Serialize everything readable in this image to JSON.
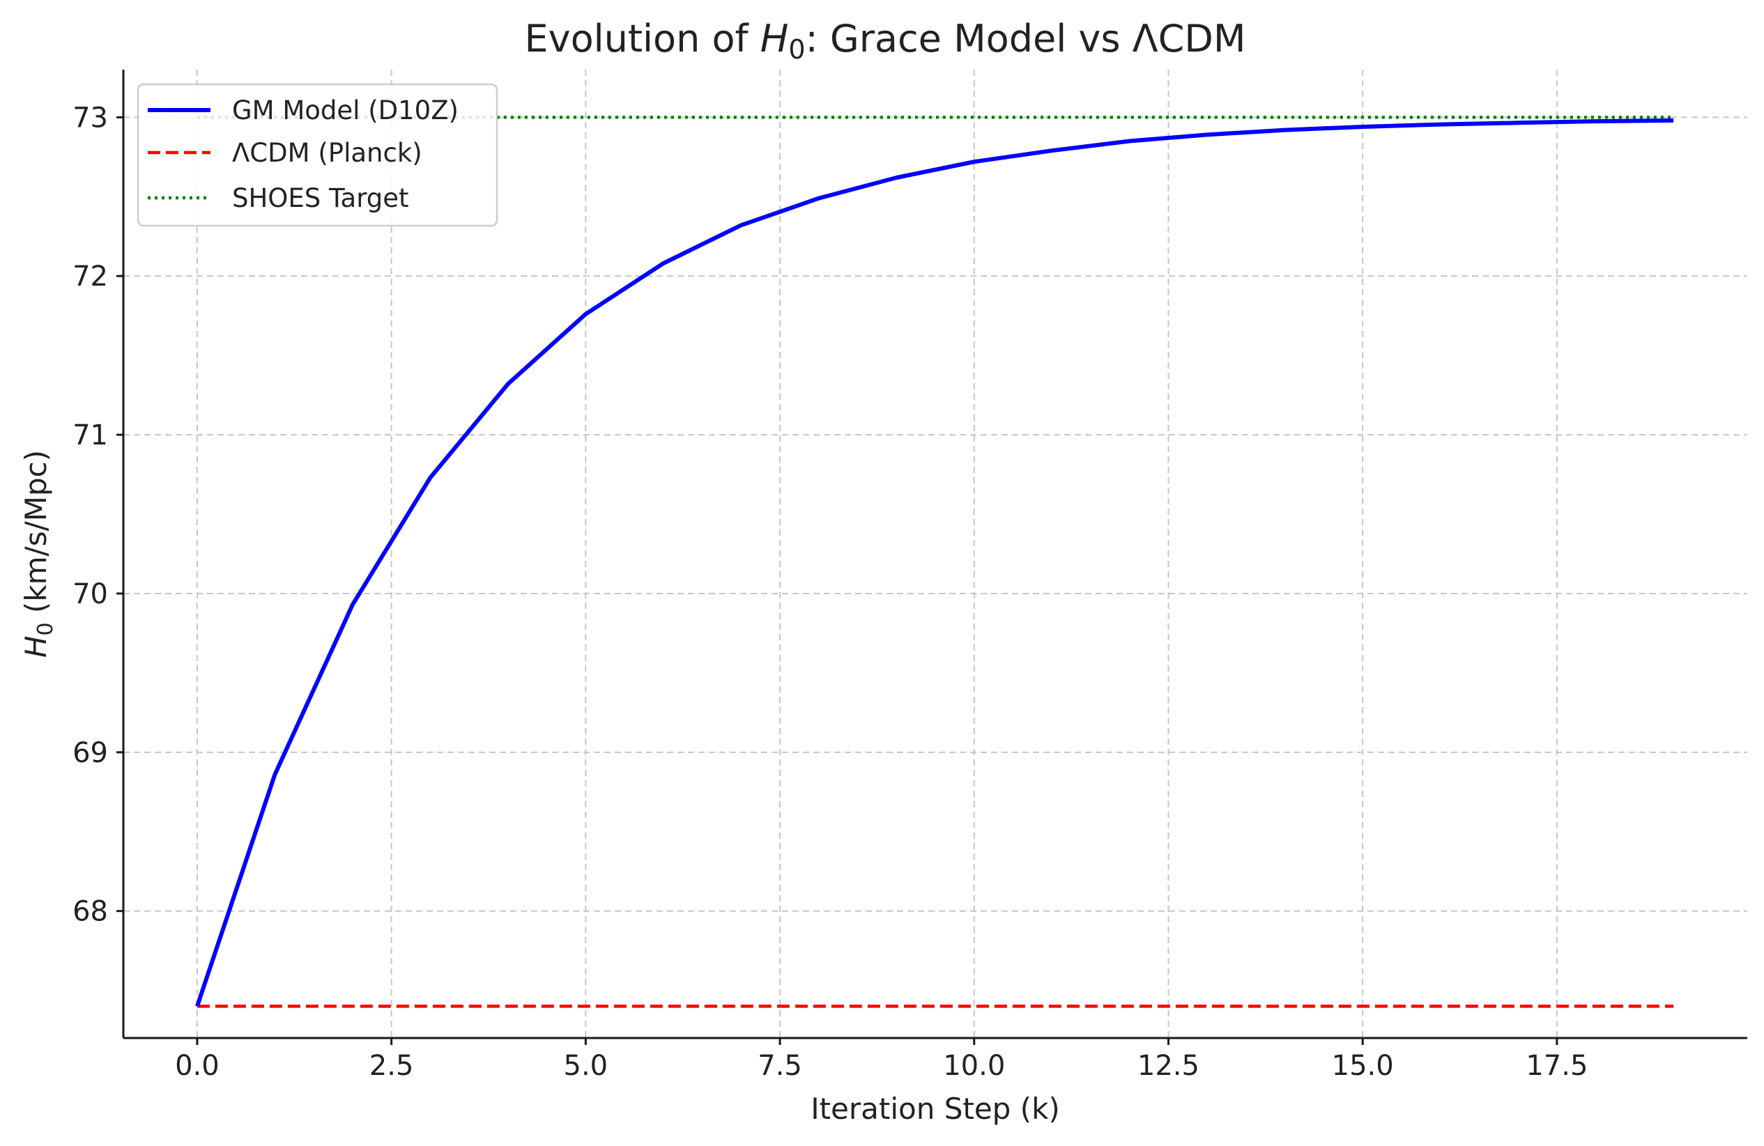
{
  "chart_data": {
    "type": "line",
    "title_prefix": "Evolution of ",
    "title_symbol": "H",
    "title_subscript": "0",
    "title_suffix": ": Grace Model vs ΛCDM",
    "xlabel": "Iteration Step (k)",
    "ylabel_symbol": "H",
    "ylabel_subscript": "0",
    "ylabel_suffix": " (km/s/Mpc)",
    "xlim": [
      -0.95,
      19.95
    ],
    "ylim": [
      67.2,
      73.3
    ],
    "x_ticks": [
      0.0,
      2.5,
      5.0,
      7.5,
      10.0,
      12.5,
      15.0,
      17.5
    ],
    "x_tick_labels": [
      "0.0",
      "2.5",
      "5.0",
      "7.5",
      "10.0",
      "12.5",
      "15.0",
      "17.5"
    ],
    "y_ticks": [
      68,
      69,
      70,
      71,
      72,
      73
    ],
    "y_tick_labels": [
      "68",
      "69",
      "70",
      "71",
      "72",
      "73"
    ],
    "grid": true,
    "legend_position": "top-left",
    "series": [
      {
        "name": "GM Model (D10Z)",
        "color": "#0000ff",
        "style": "solid",
        "x": [
          0,
          1,
          2,
          3,
          4,
          5,
          6,
          7,
          8,
          9,
          10,
          11,
          12,
          13,
          14,
          15,
          16,
          17,
          18,
          19
        ],
        "y": [
          67.4,
          68.86,
          69.93,
          70.73,
          71.32,
          71.76,
          72.08,
          72.32,
          72.49,
          72.62,
          72.72,
          72.79,
          72.85,
          72.89,
          72.92,
          72.94,
          72.955,
          72.965,
          72.975,
          72.98
        ]
      },
      {
        "name": "ΛCDM (Planck)",
        "color": "#ff0000",
        "style": "dashed",
        "x": [
          0,
          19
        ],
        "y": [
          67.4,
          67.4
        ]
      },
      {
        "name": "SHOES Target",
        "color": "#008000",
        "style": "dotted",
        "x": [
          0,
          19
        ],
        "y": [
          73.0,
          73.0
        ]
      }
    ]
  }
}
